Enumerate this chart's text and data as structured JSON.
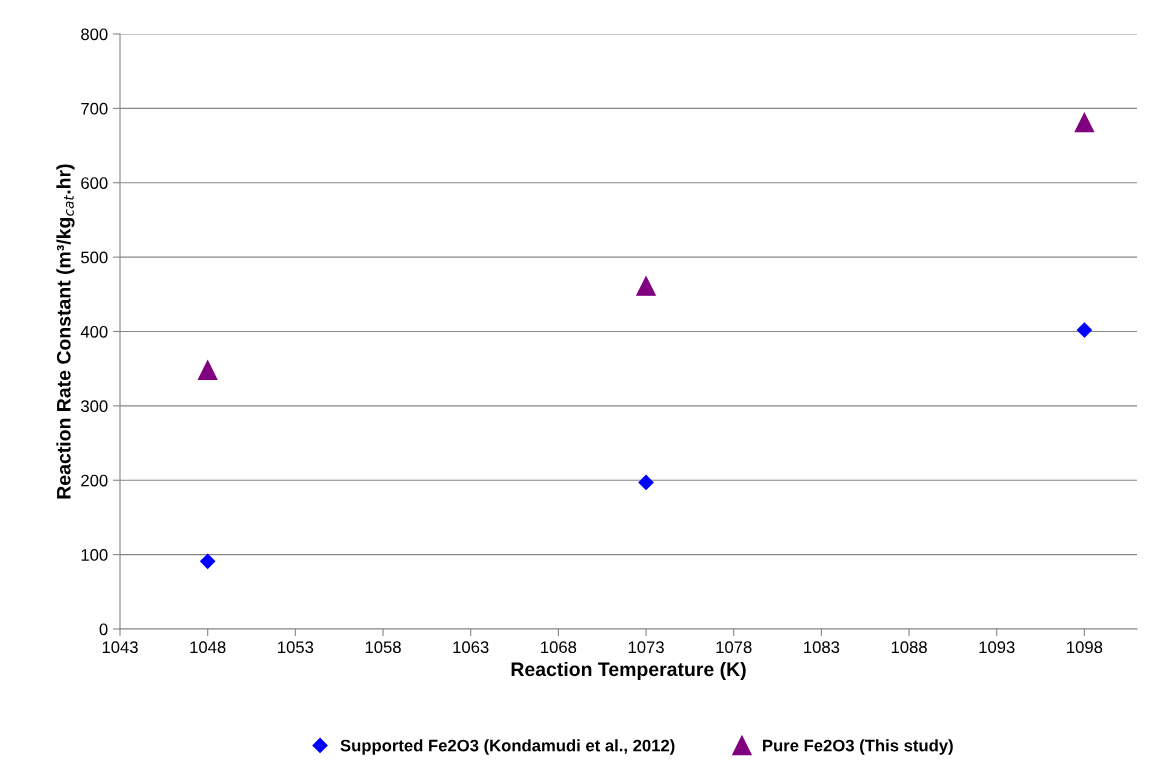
{
  "chart_data": {
    "type": "scatter",
    "xlabel": "Reaction Temperature (K)",
    "ylabel": "Reaction Rate Constant (m³/kg$_{cat}$.hr)",
    "x": [
      1048,
      1073,
      1098
    ],
    "series": [
      {
        "name": "Supported Fe2O3 (Kondamudi et al., 2012)",
        "color": "#0000ff",
        "marker": "diamond",
        "values": [
          91,
          197,
          402
        ]
      },
      {
        "name": "Pure Fe2O3 (This study)",
        "color": "#800080",
        "marker": "triangle",
        "values": [
          348,
          461,
          681
        ]
      }
    ],
    "xlim": [
      1043,
      1101
    ],
    "xticks": [
      1043,
      1048,
      1053,
      1058,
      1063,
      1068,
      1073,
      1078,
      1083,
      1088,
      1093,
      1098
    ],
    "ylim": [
      0,
      800
    ],
    "yticks": [
      0,
      100,
      200,
      300,
      400,
      500,
      600,
      700,
      800
    ],
    "grid": "y",
    "legend": "bottom"
  }
}
